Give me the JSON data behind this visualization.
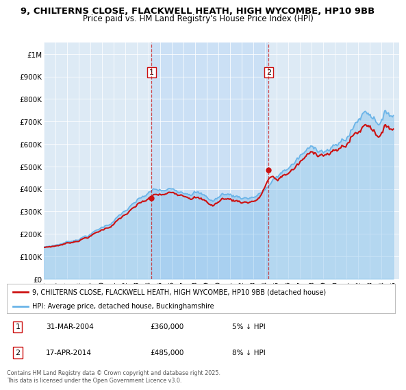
{
  "title_line1": "9, CHILTERNS CLOSE, FLACKWELL HEATH, HIGH WYCOMBE, HP10 9BB",
  "title_line2": "Price paid vs. HM Land Registry's House Price Index (HPI)",
  "fig_bg_color": "#ffffff",
  "plot_bg_color": "#ddeaf5",
  "legend_label_red": "9, CHILTERNS CLOSE, FLACKWELL HEATH, HIGH WYCOMBE, HP10 9BB (detached house)",
  "legend_label_blue": "HPI: Average price, detached house, Buckinghamshire",
  "annotation1_date": "31-MAR-2004",
  "annotation1_price": "£360,000",
  "annotation1_hpi": "5% ↓ HPI",
  "annotation2_date": "17-APR-2014",
  "annotation2_price": "£485,000",
  "annotation2_hpi": "8% ↓ HPI",
  "footnote": "Contains HM Land Registry data © Crown copyright and database right 2025.\nThis data is licensed under the Open Government Licence v3.0.",
  "sale1_year": 2004.25,
  "sale1_price": 360000,
  "sale2_year": 2014.29,
  "sale2_price": 485000,
  "ylim_min": 0,
  "ylim_max": 1050000,
  "ytick_values": [
    0,
    100000,
    200000,
    300000,
    400000,
    500000,
    600000,
    700000,
    800000,
    900000,
    1000000
  ],
  "ytick_labels": [
    "£0",
    "£100K",
    "£200K",
    "£300K",
    "£400K",
    "£500K",
    "£600K",
    "£700K",
    "£800K",
    "£900K",
    "£1M"
  ],
  "xlim_min": 1995.0,
  "xlim_max": 2025.5,
  "red_color": "#cc1111",
  "blue_color": "#6ab4e8",
  "shade_color": "#c8dff5"
}
